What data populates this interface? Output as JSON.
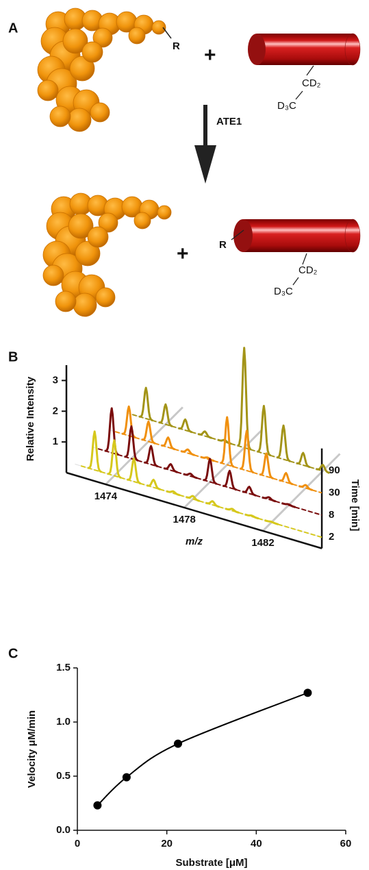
{
  "diagram": {
    "label": "A",
    "reactant_site": "R",
    "plus_1": "+",
    "reactant_group": [
      "CD₂",
      "D₃C"
    ],
    "enzyme": "ATE1",
    "product_site": "R",
    "plus_2": "+",
    "product_group": [
      "CD₂",
      "D₃C"
    ]
  },
  "chart_data": [
    {
      "panel_label": "B",
      "type": "waterfall",
      "y_label": "Relative Intensity",
      "x_label": "m/z",
      "z_label": "Time [min]",
      "x": [
        1473,
        1474,
        1475,
        1476,
        1477,
        1478,
        1479,
        1480,
        1481,
        1482
      ],
      "series": [
        {
          "name": "2",
          "color": "#d6c81c",
          "values": [
            1.25,
            1.15,
            0.75,
            0.25,
            0.06,
            0.1,
            0.12,
            0.06,
            0.03,
            0.02
          ]
        },
        {
          "name": "8",
          "color": "#7a0c0c",
          "values": [
            1.45,
            1.05,
            0.6,
            0.2,
            0.08,
            0.75,
            0.55,
            0.22,
            0.07,
            0.03
          ]
        },
        {
          "name": "30",
          "color": "#f0900f",
          "values": [
            0.95,
            0.65,
            0.32,
            0.12,
            0.05,
            1.55,
            1.3,
            0.75,
            0.3,
            0.1
          ]
        },
        {
          "name": "90",
          "color": "#a39418",
          "values": [
            1.0,
            0.65,
            0.35,
            0.15,
            0.06,
            3.25,
            1.55,
            1.1,
            0.4,
            0.2
          ]
        }
      ],
      "xlim": [
        1472,
        1485
      ],
      "xticks": [
        1474,
        1478,
        1482
      ],
      "ylim": [
        0,
        3.5
      ],
      "yticks": [
        1,
        2,
        3
      ],
      "grid": true
    },
    {
      "panel_label": "C",
      "type": "line",
      "x": [
        4.5,
        11,
        22.5,
        51.5
      ],
      "values": [
        0.23,
        0.49,
        0.8,
        1.27
      ],
      "color": "#000000",
      "markers": true,
      "smooth": true,
      "xlim": [
        0,
        60
      ],
      "xticks": [
        0,
        20,
        40,
        60
      ],
      "ylim": [
        0,
        1.5
      ],
      "yticks": [
        {
          "value": 0,
          "label": "0.0"
        },
        {
          "value": 0.5,
          "label": "0.5"
        },
        {
          "value": 1,
          "label": "1.0"
        },
        {
          "value": 1.5,
          "label": "1.5"
        }
      ],
      "x_label": "Substrate [μM]",
      "y_label": "Velocity μM/min"
    }
  ]
}
